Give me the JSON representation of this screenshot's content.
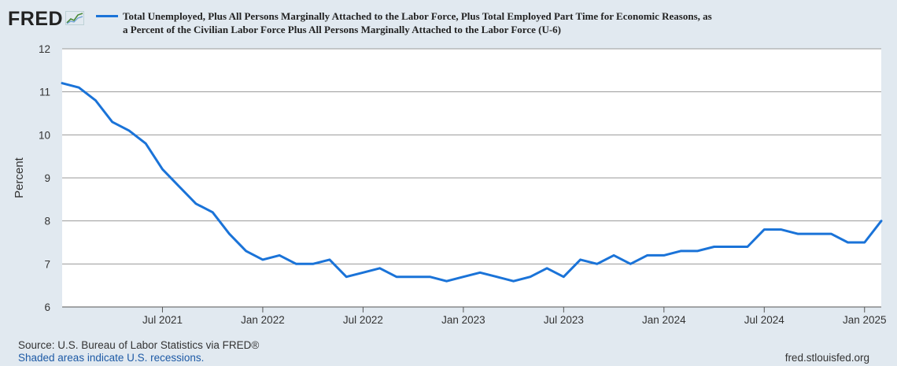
{
  "header": {
    "logo_text": "FRED",
    "logo_icon": "trend-line-icon",
    "series_title_line1": "Total Unemployed, Plus All Persons Marginally Attached to the Labor Force, Plus Total Employed Part Time for Economic Reasons, as",
    "series_title_line2": "a Percent of the Civilian Labor Force Plus All Persons Marginally Attached to the Labor Force (U-6)"
  },
  "footer": {
    "source": "Source: U.S. Bureau of Labor Statistics via FRED®",
    "recession_note": "Shaded areas indicate U.S. recessions.",
    "site": "fred.stlouisfed.org"
  },
  "colors": {
    "background": "#e1e9f0",
    "plot_background": "#ffffff",
    "series": "#1a73d8",
    "grid": "#9a9a9a"
  },
  "chart_data": {
    "type": "line",
    "title": "Total Unemployed, Plus All Persons Marginally Attached to the Labor Force, Plus Total Employed Part Time for Economic Reasons, as a Percent of the Civilian Labor Force Plus All Persons Marginally Attached to the Labor Force (U-6)",
    "ylabel": "Percent",
    "xlabel": "",
    "ylim": [
      6,
      12
    ],
    "yticks": [
      6,
      7,
      8,
      9,
      10,
      11,
      12
    ],
    "xlim": [
      "2021-01",
      "2025-02"
    ],
    "xticks": [
      {
        "date": "2021-07",
        "label": "Jul 2021"
      },
      {
        "date": "2022-01",
        "label": "Jan 2022"
      },
      {
        "date": "2022-07",
        "label": "Jul 2022"
      },
      {
        "date": "2023-01",
        "label": "Jan 2023"
      },
      {
        "date": "2023-07",
        "label": "Jul 2023"
      },
      {
        "date": "2024-01",
        "label": "Jan 2024"
      },
      {
        "date": "2024-07",
        "label": "Jul 2024"
      },
      {
        "date": "2025-01",
        "label": "Jan 2025"
      }
    ],
    "grid": "horizontal",
    "series": [
      {
        "x": [
          "2021-01",
          "2021-02",
          "2021-03",
          "2021-04",
          "2021-05",
          "2021-06",
          "2021-07",
          "2021-08",
          "2021-09",
          "2021-10",
          "2021-11",
          "2021-12",
          "2022-01",
          "2022-02",
          "2022-03",
          "2022-04",
          "2022-05",
          "2022-06",
          "2022-07",
          "2022-08",
          "2022-09",
          "2022-10",
          "2022-11",
          "2022-12",
          "2023-01",
          "2023-02",
          "2023-03",
          "2023-04",
          "2023-05",
          "2023-06",
          "2023-07",
          "2023-08",
          "2023-09",
          "2023-10",
          "2023-11",
          "2023-12",
          "2024-01",
          "2024-02",
          "2024-03",
          "2024-04",
          "2024-05",
          "2024-06",
          "2024-07",
          "2024-08",
          "2024-09",
          "2024-10",
          "2024-11",
          "2024-12",
          "2025-01",
          "2025-02"
        ],
        "values": [
          11.2,
          11.1,
          10.8,
          10.3,
          10.1,
          9.8,
          9.2,
          8.8,
          8.4,
          8.2,
          7.7,
          7.3,
          7.1,
          7.2,
          7.0,
          7.0,
          7.1,
          6.7,
          6.8,
          6.9,
          6.7,
          6.7,
          6.7,
          6.6,
          6.7,
          6.8,
          6.7,
          6.6,
          6.7,
          6.9,
          6.7,
          7.1,
          7.0,
          7.2,
          7.0,
          7.2,
          7.2,
          7.3,
          7.3,
          7.4,
          7.4,
          7.4,
          7.8,
          7.8,
          7.7,
          7.7,
          7.7,
          7.5,
          7.5,
          8.0
        ]
      }
    ]
  }
}
